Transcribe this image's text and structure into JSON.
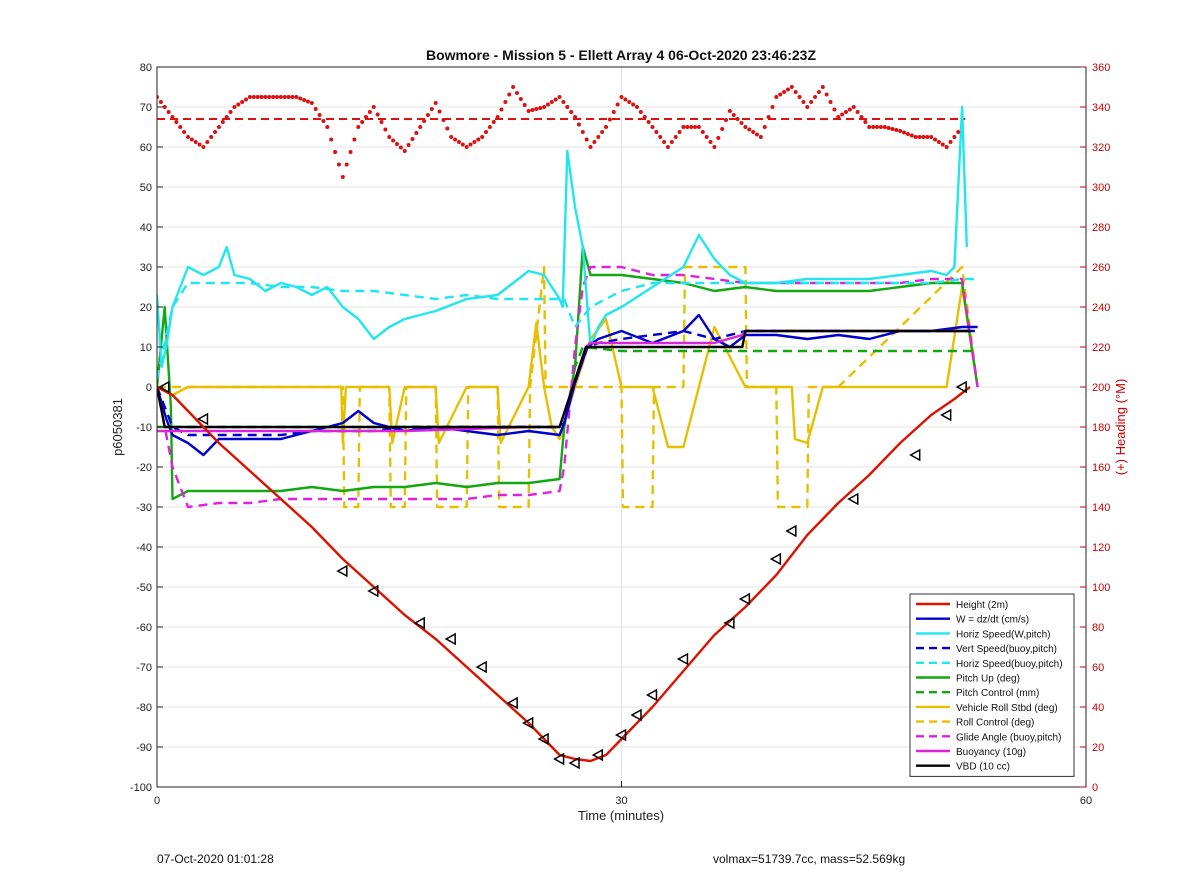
{
  "chart_data": {
    "type": "line",
    "title": "Bowmore - Mission 5 - Ellett Array 4 06-Oct-2020 23:46:23Z",
    "xlabel": "Time (minutes)",
    "ylabel_left": "p6050381",
    "ylabel_right": "(+) Heading (°M)",
    "xlim": [
      0,
      60
    ],
    "ylim_left": [
      -100,
      80
    ],
    "ylim_right": [
      0,
      360
    ],
    "x_ticks": [
      0,
      30,
      60
    ],
    "y_ticks_left": [
      80,
      70,
      60,
      50,
      40,
      30,
      20,
      10,
      0,
      -10,
      -20,
      -30,
      -40,
      -50,
      -60,
      -70,
      -80,
      -90,
      -100
    ],
    "y_ticks_right": [
      360,
      340,
      320,
      300,
      280,
      260,
      240,
      220,
      200,
      180,
      160,
      140,
      120,
      100,
      80,
      60,
      40,
      20,
      0
    ],
    "grid": true,
    "legend_position": "bottom-right",
    "colors": {
      "right_axis": "#cc0000",
      "heading": "#dd1111"
    },
    "heading_mean": 334,
    "series": [
      {
        "name": "Height (2m)",
        "color": "#dd1100",
        "style": "solid",
        "x": [
          0,
          1,
          2,
          3,
          4,
          6,
          8,
          10,
          12,
          14,
          16,
          18,
          20,
          22,
          24,
          25,
          26,
          27,
          28,
          29,
          30,
          32,
          34,
          36,
          38,
          40,
          42,
          44,
          46,
          48,
          50,
          51.5,
          52.5
        ],
        "y": [
          0,
          -2,
          -6,
          -10,
          -14,
          -21,
          -28,
          -35,
          -43,
          -50,
          -57,
          -63,
          -70,
          -77,
          -84,
          -88,
          -92,
          -93,
          -93.5,
          -92,
          -88,
          -80,
          -71,
          -62,
          -55,
          -47,
          -37,
          -29,
          -22,
          -14,
          -7,
          -3,
          0
        ]
      },
      {
        "name": "W = dz/dt (cm/s)",
        "color": "#0000cc",
        "style": "solid",
        "x": [
          0,
          0.6,
          1,
          2,
          3,
          4,
          6,
          8,
          10,
          12,
          13,
          14,
          16,
          18,
          20,
          22,
          24,
          26,
          26.3,
          27,
          27.8,
          28.5,
          30,
          32,
          34,
          35,
          36,
          37,
          38,
          40,
          42,
          44,
          46,
          48,
          50,
          52,
          53
        ],
        "y": [
          0,
          -8,
          -12,
          -14,
          -17,
          -13,
          -13,
          -13,
          -11,
          -9,
          -6,
          -9,
          -11,
          -10,
          -11,
          -12,
          -11,
          -12,
          -9,
          1,
          10,
          12,
          14,
          11,
          14,
          18,
          12,
          10,
          13,
          13,
          12,
          13,
          12,
          14,
          14,
          15,
          15
        ]
      },
      {
        "name": "Horiz Speed(W,pitch)",
        "color": "#22e6ee",
        "style": "solid",
        "x": [
          0,
          0.3,
          0.6,
          1,
          2,
          3,
          4,
          4.5,
          5,
          6,
          7,
          8,
          9,
          10,
          11,
          12,
          13,
          14,
          15,
          16,
          18,
          20,
          22,
          24,
          25,
          26,
          26.2,
          26.5,
          27,
          27.5,
          28,
          28.5,
          29,
          30,
          32,
          34,
          35,
          36,
          37,
          38,
          40,
          42,
          44,
          46,
          48,
          50,
          51,
          51.5,
          52,
          52.3
        ],
        "y": [
          23,
          5,
          10,
          20,
          30,
          28,
          30,
          35,
          28,
          27,
          24,
          26,
          25,
          23,
          25,
          20,
          17,
          12,
          15,
          17,
          19,
          22,
          23,
          29,
          28,
          22,
          20,
          59,
          45,
          35,
          10,
          15,
          18,
          20,
          25,
          30,
          38,
          32,
          28,
          26,
          26,
          27,
          27,
          27,
          28,
          29,
          28,
          30,
          70,
          35
        ]
      },
      {
        "name": "Vert Speed(buoy,pitch)",
        "color": "#0000cc",
        "style": "dashed",
        "x": [
          0,
          1,
          2,
          4,
          6,
          8,
          10,
          12,
          14,
          16,
          18,
          20,
          22,
          24,
          26,
          26.3,
          27,
          27.8,
          28.5,
          30,
          32,
          34,
          36,
          38,
          40,
          42,
          44,
          46,
          48,
          50,
          52,
          53
        ],
        "y": [
          0,
          -10,
          -12,
          -12,
          -12,
          -12,
          -11,
          -11,
          -11,
          -10,
          -10,
          -10,
          -10,
          -10,
          -10,
          -9,
          1,
          10,
          11,
          12,
          13,
          14,
          12,
          14,
          14,
          14,
          14,
          14,
          14,
          14,
          14,
          14
        ]
      },
      {
        "name": "Horiz Speed(buoy,pitch)",
        "color": "#22e6ee",
        "style": "dashed",
        "x": [
          0,
          1,
          2,
          4,
          6,
          8,
          10,
          12,
          14,
          16,
          18,
          20,
          22,
          24,
          26,
          26.3,
          27,
          28,
          30,
          32,
          34,
          36,
          38,
          40,
          42,
          44,
          46,
          48,
          50,
          52,
          53
        ],
        "y": [
          2,
          20,
          26,
          26,
          26,
          25,
          25,
          24,
          24,
          23,
          22,
          23,
          22,
          22,
          22,
          22,
          15,
          20,
          24,
          26,
          26,
          26,
          26,
          26,
          26,
          26,
          26,
          26,
          26,
          27,
          27
        ]
      },
      {
        "name": "Pitch Up (deg)",
        "color": "#11a811",
        "style": "solid",
        "x": [
          0,
          0.5,
          0.9,
          1,
          2,
          4,
          6,
          8,
          10,
          12,
          14,
          16,
          18,
          20,
          22,
          24,
          26,
          26.3,
          27,
          27.5,
          28,
          30,
          32,
          34,
          36,
          38,
          40,
          42,
          44,
          46,
          48,
          50,
          52,
          53
        ],
        "y": [
          0,
          20,
          -5,
          -28,
          -26,
          -26,
          -26,
          -26,
          -25,
          -26,
          -25,
          -25,
          -24,
          -25,
          -24,
          -24,
          -23,
          -10,
          5,
          35,
          28,
          28,
          27,
          26,
          24,
          25,
          24,
          24,
          24,
          24,
          25,
          26,
          26,
          0
        ]
      },
      {
        "name": "Pitch Control (mm)",
        "color": "#11a811",
        "style": "dashed",
        "x": [
          0,
          1,
          2,
          4,
          8,
          12,
          16,
          20,
          24,
          26,
          26.3,
          27,
          27.5,
          30,
          34,
          38,
          42,
          46,
          50,
          52,
          53
        ],
        "y": [
          -10,
          -10,
          -10,
          -10,
          -10,
          -10,
          -10,
          -10,
          -10,
          -10,
          -10,
          5,
          10,
          9,
          9,
          9,
          9,
          9,
          9,
          9,
          9
        ]
      },
      {
        "name": "Vehicle Roll Stbd (deg)",
        "color": "#e6c000",
        "style": "solid",
        "x": [
          0,
          1,
          2,
          4,
          6,
          8,
          10,
          11.9,
          12,
          12.2,
          14,
          15,
          15.2,
          16,
          18,
          18.2,
          20,
          22,
          22.2,
          24,
          24.5,
          25,
          25.5,
          26,
          26.3,
          27,
          28,
          29,
          30,
          32,
          33,
          34,
          35,
          36,
          38,
          40,
          41,
          41.2,
          42,
          43,
          44,
          46,
          48,
          50,
          51,
          52,
          53
        ],
        "y": [
          0,
          -2,
          0,
          0,
          0,
          0,
          0,
          0,
          -14,
          0,
          0,
          0,
          -14,
          0,
          0,
          -14,
          0,
          0,
          -14,
          0,
          16,
          0,
          -10,
          -13,
          -9,
          0,
          12,
          17,
          0,
          0,
          -15,
          -15,
          0,
          15,
          0,
          0,
          0,
          -13,
          -14,
          0,
          0,
          0,
          0,
          0,
          0,
          25,
          0
        ]
      },
      {
        "name": "Roll Control (deg)",
        "color": "#e6c000",
        "style": "dashed",
        "x": [
          0,
          12,
          12.1,
          13,
          13.1,
          14,
          15,
          15.1,
          16,
          16.1,
          18,
          18.1,
          20,
          20.1,
          22,
          22.1,
          24,
          24.1,
          25,
          25.1,
          26,
          30,
          30.1,
          32,
          32.1,
          34,
          34.1,
          38,
          38.1,
          40,
          40.1,
          42,
          42.1,
          44,
          52,
          53
        ],
        "y": [
          0,
          0,
          -30,
          -30,
          0,
          0,
          0,
          -30,
          -30,
          0,
          0,
          -30,
          -30,
          0,
          0,
          -30,
          -30,
          0,
          30,
          0,
          0,
          0,
          -30,
          -30,
          0,
          0,
          30,
          30,
          0,
          0,
          -30,
          -30,
          0,
          0,
          30,
          0
        ]
      },
      {
        "name": "Glide Angle (buoy,pitch)",
        "color": "#dd22dd",
        "style": "dashed",
        "x": [
          0,
          1,
          2,
          4,
          6,
          8,
          10,
          12,
          14,
          16,
          18,
          20,
          22,
          24,
          26,
          26.3,
          27,
          27.5,
          28,
          30,
          32,
          34,
          36,
          38,
          40,
          42,
          44,
          46,
          48,
          50,
          52,
          53
        ],
        "y": [
          0,
          -20,
          -30,
          -29,
          -29,
          -28,
          -28,
          -28,
          -28,
          -28,
          -28,
          -28,
          -27,
          -27,
          -26,
          -20,
          10,
          25,
          30,
          30,
          28,
          28,
          27,
          26,
          26,
          26,
          26,
          26,
          26,
          27,
          27,
          0
        ]
      },
      {
        "name": "Buoyancy (10g)",
        "color": "#dd22dd",
        "style": "solid",
        "x": [
          0,
          2,
          8,
          16,
          24,
          26,
          27.7,
          28,
          36,
          37.8,
          38,
          46,
          52.5
        ],
        "y": [
          -11,
          -11,
          -11,
          -11,
          -10,
          -10,
          10,
          11,
          11,
          13,
          14,
          14,
          14
        ]
      },
      {
        "name": "VBD (10 cc)",
        "color": "#000000",
        "style": "solid",
        "x": [
          0,
          0.5,
          1,
          26,
          27.7,
          37.8,
          38,
          52.5
        ],
        "y": [
          0,
          -10,
          -10,
          -10,
          10,
          10,
          14,
          14
        ]
      }
    ],
    "heading": {
      "name": "Heading",
      "color": "#dd1111",
      "axis": "right",
      "x": [
        0,
        1,
        2,
        3,
        4,
        5,
        6,
        7,
        8,
        9,
        10,
        11,
        12,
        13,
        14,
        15,
        16,
        17,
        18,
        19,
        20,
        21,
        22,
        23,
        24,
        25,
        26,
        27,
        28,
        29,
        30,
        31,
        32,
        33,
        34,
        35,
        36,
        37,
        38,
        39,
        40,
        41,
        42,
        43,
        44,
        45,
        46,
        47,
        48,
        49,
        50,
        51,
        52
      ],
      "y": [
        345,
        335,
        325,
        320,
        330,
        340,
        345,
        345,
        345,
        345,
        342,
        330,
        305,
        330,
        340,
        325,
        318,
        330,
        342,
        325,
        320,
        325,
        335,
        350,
        338,
        340,
        345,
        335,
        320,
        330,
        345,
        340,
        330,
        320,
        330,
        330,
        320,
        338,
        330,
        325,
        345,
        350,
        340,
        350,
        335,
        340,
        330,
        330,
        328,
        325,
        325,
        320,
        330
      ]
    },
    "markers": {
      "symbol": "triangle-left",
      "color": "#000000",
      "x": [
        0.5,
        3,
        12,
        14,
        17,
        19,
        21,
        23,
        24,
        25,
        26,
        27,
        28.5,
        30,
        31,
        32,
        34,
        37,
        38,
        40,
        41,
        45,
        49,
        51,
        52
      ],
      "y": [
        0,
        -8,
        -46,
        -51,
        -59,
        -63,
        -70,
        -79,
        -84,
        -88,
        -93,
        -94,
        -92,
        -87,
        -82,
        -77,
        -68,
        -59,
        -53,
        -43,
        -36,
        -28,
        -17,
        -7,
        0
      ]
    }
  },
  "footer": {
    "left": "07-Oct-2020 01:01:28",
    "right": "volmax=51739.7cc, mass=52.569kg"
  }
}
